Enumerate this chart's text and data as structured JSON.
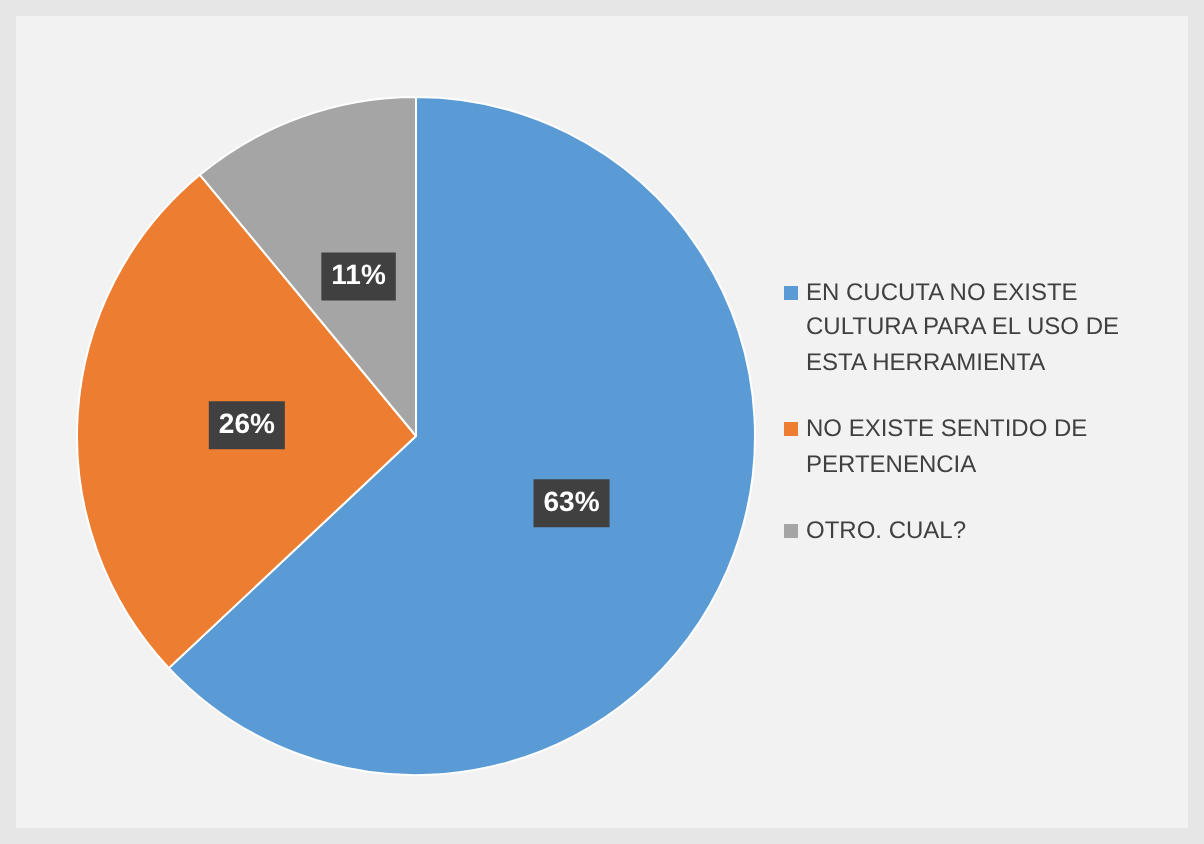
{
  "chart_data": {
    "type": "pie",
    "categories": [
      "EN CUCUTA NO EXISTE CULTURA PARA EL USO DE ESTA HERRAMIENTA",
      "NO EXISTE SENTIDO DE PERTENENCIA",
      "OTRO. CUAL?"
    ],
    "values": [
      63,
      26,
      11
    ],
    "colors": [
      "#5b9bd5",
      "#ed7d31",
      "#a5a5a5"
    ],
    "value_labels": [
      "63%",
      "26%",
      "11%"
    ],
    "legend": "right"
  }
}
